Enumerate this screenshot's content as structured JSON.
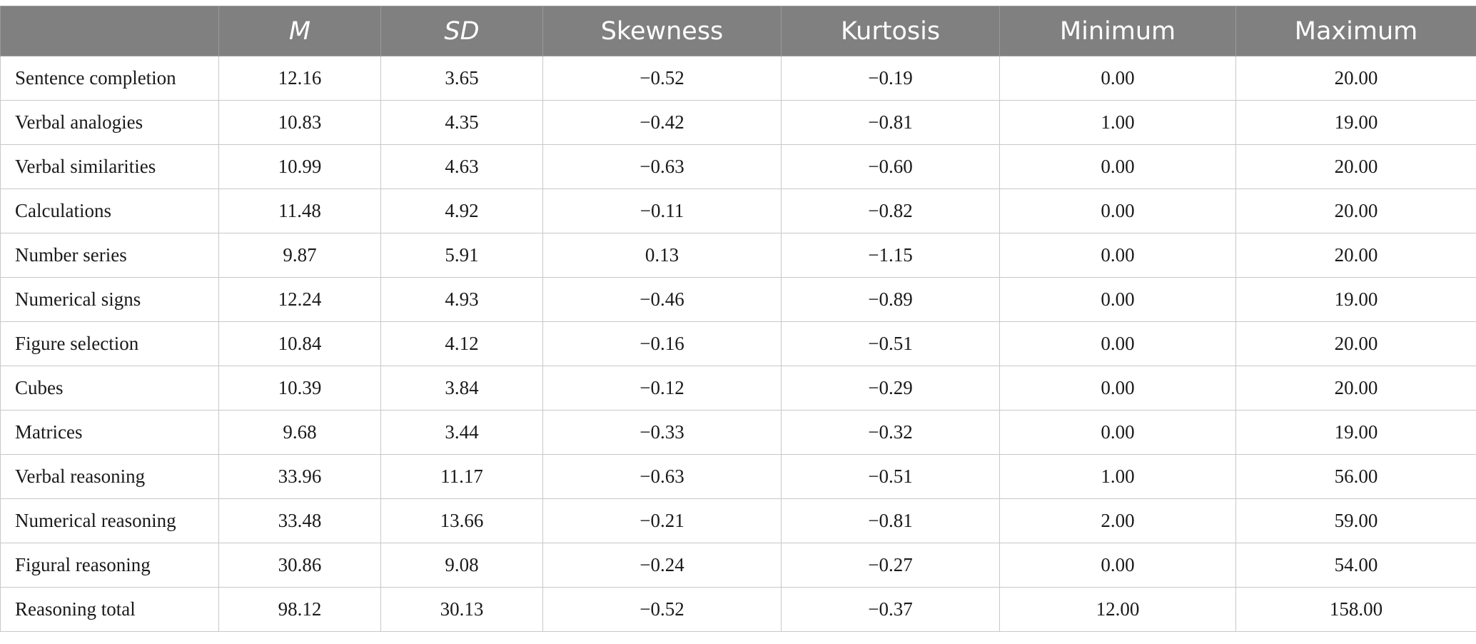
{
  "table": {
    "headers": [
      "",
      "M",
      "SD",
      "Skewness",
      "Kurtosis",
      "Minimum",
      "Maximum"
    ],
    "rows": [
      [
        "Sentence completion",
        "12.16",
        "3.65",
        "−0.52",
        "−0.19",
        "0.00",
        "20.00"
      ],
      [
        "Verbal analogies",
        "10.83",
        "4.35",
        "−0.42",
        "−0.81",
        "1.00",
        "19.00"
      ],
      [
        "Verbal similarities",
        "10.99",
        "4.63",
        "−0.63",
        "−0.60",
        "0.00",
        "20.00"
      ],
      [
        "Calculations",
        "11.48",
        "4.92",
        "−0.11",
        "−0.82",
        "0.00",
        "20.00"
      ],
      [
        "Number series",
        "9.87",
        "5.91",
        "0.13",
        "−1.15",
        "0.00",
        "20.00"
      ],
      [
        "Numerical signs",
        "12.24",
        "4.93",
        "−0.46",
        "−0.89",
        "0.00",
        "19.00"
      ],
      [
        "Figure selection",
        "10.84",
        "4.12",
        "−0.16",
        "−0.51",
        "0.00",
        "20.00"
      ],
      [
        "Cubes",
        "10.39",
        "3.84",
        "−0.12",
        "−0.29",
        "0.00",
        "20.00"
      ],
      [
        "Matrices",
        "9.68",
        "3.44",
        "−0.33",
        "−0.32",
        "0.00",
        "19.00"
      ],
      [
        "Verbal reasoning",
        "33.96",
        "11.17",
        "−0.63",
        "−0.51",
        "1.00",
        "56.00"
      ],
      [
        "Numerical reasoning",
        "33.48",
        "13.66",
        "−0.21",
        "−0.81",
        "2.00",
        "59.00"
      ],
      [
        "Figural reasoning",
        "30.86",
        "9.08",
        "−0.24",
        "−0.27",
        "0.00",
        "54.00"
      ],
      [
        "Reasoning total",
        "98.12",
        "30.13",
        "−0.52",
        "−0.37",
        "12.00",
        "158.00"
      ]
    ]
  },
  "colors": {
    "header_bg": "#808080",
    "header_text": "#ffffff",
    "border": "#c8c8c8"
  }
}
